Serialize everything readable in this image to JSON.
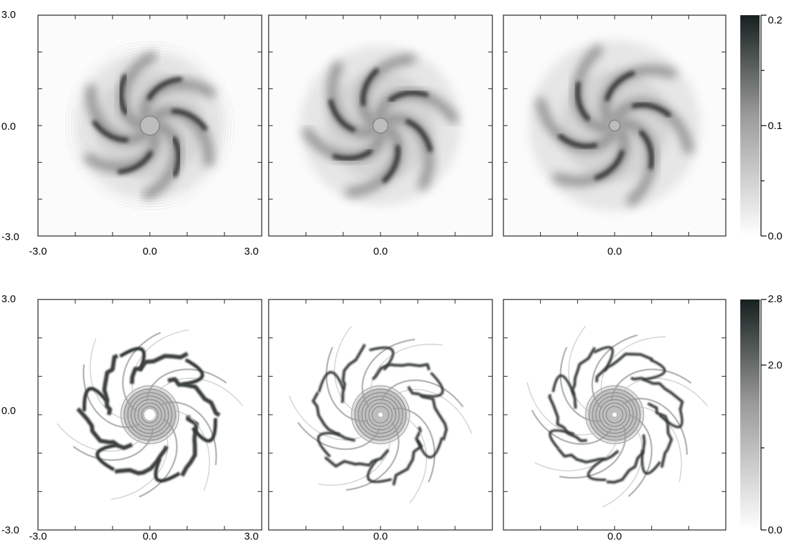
{
  "figure": {
    "rows": [
      {
        "id": "top",
        "y_ticks": [
          "3.0",
          "0.0",
          "-3.0"
        ],
        "x_ticks_first": [
          "-3.0",
          "0.0",
          "3.0"
        ],
        "x_ticks_other": [
          "0.0"
        ],
        "colorbar": {
          "labels": [
            "0.2",
            "0.1",
            "0.0"
          ],
          "max": 0.2,
          "min": 0.0
        },
        "pattern": {
          "type": "blurred-spiral",
          "arms": [
            6,
            6,
            6
          ]
        }
      },
      {
        "id": "bottom",
        "y_ticks": [
          "3.0",
          "0.0",
          "-3.0"
        ],
        "x_ticks_first": [
          "-3.0",
          "0.0",
          "3.0"
        ],
        "x_ticks_other": [
          "0.0"
        ],
        "colorbar": {
          "labels": [
            "2.8",
            "2.0",
            "0.0"
          ],
          "max": 2.8,
          "min": 0.0
        },
        "pattern": {
          "type": "shock-filaments",
          "arms": [
            6,
            6,
            7
          ]
        }
      }
    ],
    "colormap": {
      "low": "#ffffff",
      "high": "#16201f"
    }
  }
}
